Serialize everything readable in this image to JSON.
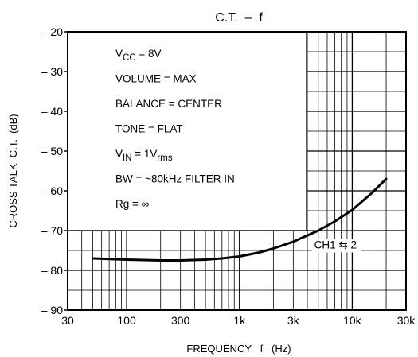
{
  "chart_data": {
    "type": "line",
    "title": "C.T.  –  f",
    "xlabel": "FREQUENCY   f   (Hz)",
    "ylabel": "CROSS TALK  C.T.  (dB)",
    "x_scale": "log",
    "xlim": [
      30,
      30000
    ],
    "ylim": [
      -90,
      -20
    ],
    "x_ticks": [
      30,
      100,
      300,
      1000,
      3000,
      10000,
      30000
    ],
    "x_tick_labels": [
      "30",
      "100",
      "300",
      "1k",
      "3k",
      "10k",
      "30k"
    ],
    "y_ticks": [
      -20,
      -30,
      -40,
      -50,
      -60,
      -70,
      -80,
      -90
    ],
    "y_tick_labels": [
      "– 20",
      "– 30",
      "– 40",
      "– 50",
      "– 60",
      "– 70",
      "– 80",
      "– 90"
    ],
    "grid": "log-major-minor",
    "conditions": [
      {
        "main": "V",
        "sub": "CC",
        "rest": " = 8V"
      },
      {
        "main": "VOLUME = MAX",
        "sub": "",
        "rest": ""
      },
      {
        "main": "BALANCE = CENTER",
        "sub": "",
        "rest": ""
      },
      {
        "main": "TONE = FLAT",
        "sub": "",
        "rest": ""
      },
      {
        "main": "V",
        "sub": "IN",
        "rest": " = 1V"
      },
      {
        "main": "BW = ~80kHz  FILTER  IN",
        "sub": "",
        "rest": ""
      },
      {
        "main": "Rg = ∞",
        "sub": "",
        "rest": ""
      }
    ],
    "condition_vin_sub2": "rms",
    "series": [
      {
        "name": "CH1 ⇆ 2",
        "x": [
          50,
          100,
          200,
          300,
          500,
          700,
          1000,
          1500,
          2000,
          3000,
          5000,
          7000,
          10000,
          15000,
          20000
        ],
        "y": [
          -77,
          -77.3,
          -77.5,
          -77.5,
          -77.3,
          -77,
          -76.5,
          -75.5,
          -74.5,
          -72.8,
          -70,
          -67.7,
          -64.8,
          -60.5,
          -57
        ]
      }
    ],
    "series_label": "CH1 ⇆ 2",
    "line_color": "#000000"
  }
}
